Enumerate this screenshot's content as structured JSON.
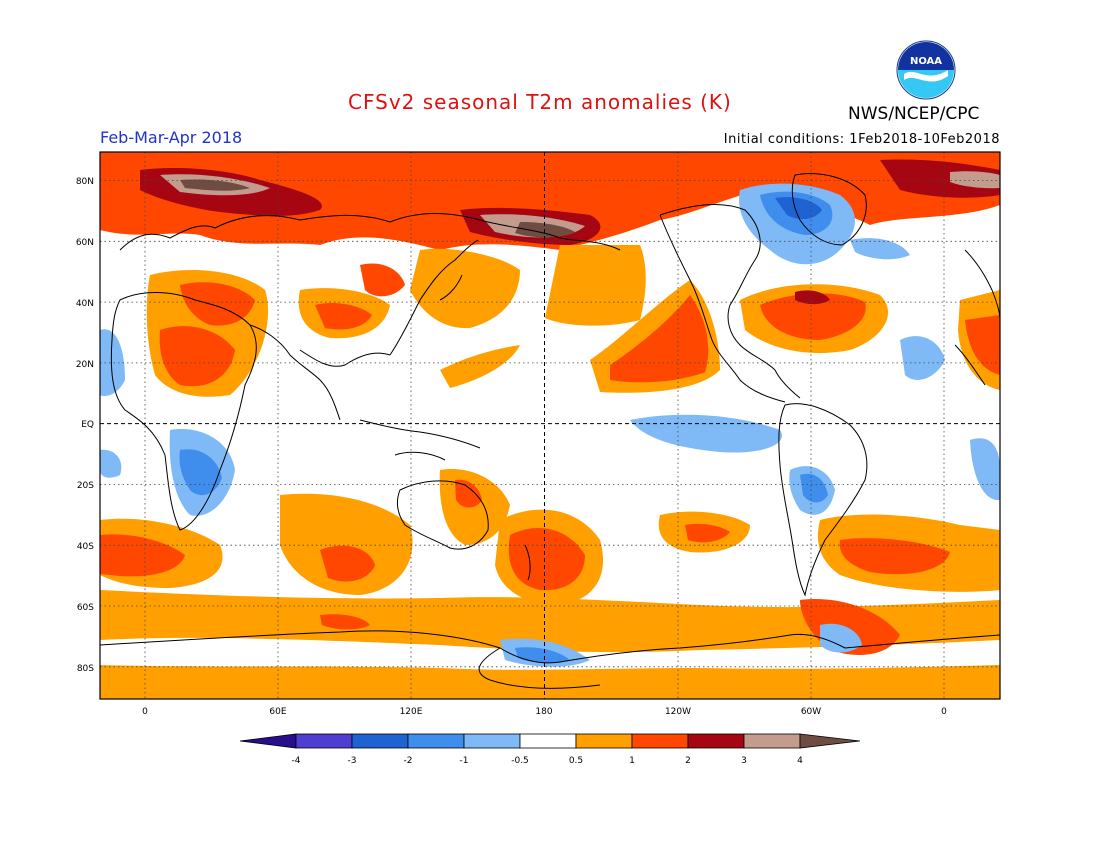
{
  "header": {
    "title": "CFSv2 seasonal T2m anomalies (K)",
    "agency": "NWS/NCEP/CPC",
    "period": "Feb-Mar-Apr 2018",
    "initial_conditions": "Initial conditions: 1Feb2018-10Feb2018",
    "logo_text": "NOAA"
  },
  "map": {
    "lat_labels": [
      "80N",
      "60N",
      "40N",
      "20N",
      "EQ",
      "20S",
      "40S",
      "60S",
      "80S"
    ],
    "lon_labels": [
      "0",
      "60E",
      "120E",
      "180",
      "120W",
      "60W",
      "0"
    ]
  },
  "colorbar": {
    "ticks": [
      "-4",
      "-3",
      "-2",
      "-1",
      "-0.5",
      "0.5",
      "1",
      "2",
      "3",
      "4"
    ],
    "colors": [
      "#2a0d8e",
      "#4f3fd0",
      "#1f62d2",
      "#3f8eee",
      "#7fbaf7",
      "#ffffff",
      "#ff9f00",
      "#ff4700",
      "#a60512",
      "#c39c8e",
      "#6e4c42"
    ]
  }
}
